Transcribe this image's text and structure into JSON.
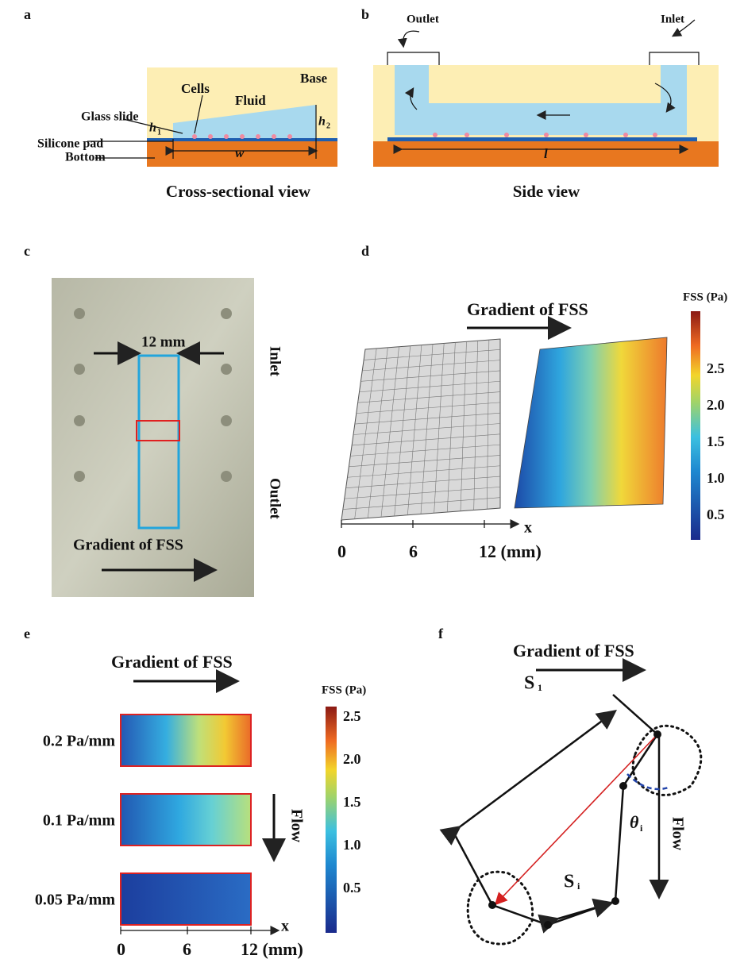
{
  "a": {
    "label": "a",
    "base": "Base",
    "cells": "Cells",
    "fluid": "Fluid",
    "glass_slide": "Glass slide",
    "silicone_pad": "Silicone pad",
    "bottom": "Bottom",
    "h1": "h",
    "h1_sub": "1",
    "h2": "h",
    "h2_sub": "2",
    "w": "w",
    "caption": "Cross-sectional view"
  },
  "b": {
    "label": "b",
    "outlet": "Outlet",
    "inlet": "Inlet",
    "l": "l",
    "caption": "Side view"
  },
  "c": {
    "label": "c",
    "width": "12 mm",
    "inlet": "Inlet",
    "outlet": "Outlet",
    "gradient": "Gradient of FSS"
  },
  "d": {
    "label": "d",
    "gradient": "Gradient of FSS",
    "colorbar_title": "FSS (Pa)",
    "colorbar_ticks": [
      "2.5",
      "2.0",
      "1.5",
      "1.0",
      "0.5"
    ],
    "x_axis": "x",
    "x_ticks": [
      "0",
      "6",
      "12 (mm)"
    ]
  },
  "e": {
    "label": "e",
    "gradient": "Gradient of FSS",
    "rows": [
      "0.2 Pa/mm",
      "0.1 Pa/mm",
      "0.05 Pa/mm"
    ],
    "flow": "Flow",
    "colorbar_title": "FSS (Pa)",
    "colorbar_ticks": [
      "2.5",
      "2.0",
      "1.5",
      "1.0",
      "0.5"
    ],
    "x_axis": "x",
    "x_ticks": [
      "0",
      "6",
      "12 (mm)"
    ]
  },
  "f": {
    "label": "f",
    "gradient": "Gradient of FSS",
    "s1": "S",
    "s1_sub": "1",
    "si": "S",
    "si_sub": "i",
    "theta": "θ",
    "theta_sub": "i",
    "flow": "Flow"
  }
}
